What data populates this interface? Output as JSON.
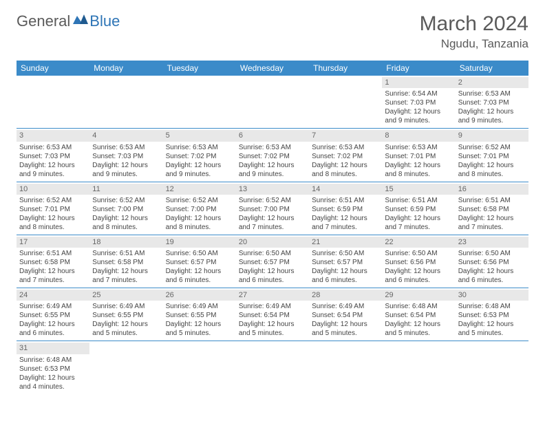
{
  "logo": {
    "text1": "General",
    "text2": "Blue"
  },
  "title": "March 2024",
  "location": "Ngudu, Tanzania",
  "colors": {
    "header_bg": "#3b8bc9",
    "header_text": "#ffffff",
    "daynum_bg": "#e8e8e8",
    "row_border": "#3b8bc9",
    "logo_blue": "#2e75b6",
    "text_gray": "#5a5a5a"
  },
  "weekdays": [
    "Sunday",
    "Monday",
    "Tuesday",
    "Wednesday",
    "Thursday",
    "Friday",
    "Saturday"
  ],
  "weeks": [
    [
      null,
      null,
      null,
      null,
      null,
      {
        "n": "1",
        "sr": "Sunrise: 6:54 AM",
        "ss": "Sunset: 7:03 PM",
        "d1": "Daylight: 12 hours",
        "d2": "and 9 minutes."
      },
      {
        "n": "2",
        "sr": "Sunrise: 6:53 AM",
        "ss": "Sunset: 7:03 PM",
        "d1": "Daylight: 12 hours",
        "d2": "and 9 minutes."
      }
    ],
    [
      {
        "n": "3",
        "sr": "Sunrise: 6:53 AM",
        "ss": "Sunset: 7:03 PM",
        "d1": "Daylight: 12 hours",
        "d2": "and 9 minutes."
      },
      {
        "n": "4",
        "sr": "Sunrise: 6:53 AM",
        "ss": "Sunset: 7:03 PM",
        "d1": "Daylight: 12 hours",
        "d2": "and 9 minutes."
      },
      {
        "n": "5",
        "sr": "Sunrise: 6:53 AM",
        "ss": "Sunset: 7:02 PM",
        "d1": "Daylight: 12 hours",
        "d2": "and 9 minutes."
      },
      {
        "n": "6",
        "sr": "Sunrise: 6:53 AM",
        "ss": "Sunset: 7:02 PM",
        "d1": "Daylight: 12 hours",
        "d2": "and 9 minutes."
      },
      {
        "n": "7",
        "sr": "Sunrise: 6:53 AM",
        "ss": "Sunset: 7:02 PM",
        "d1": "Daylight: 12 hours",
        "d2": "and 8 minutes."
      },
      {
        "n": "8",
        "sr": "Sunrise: 6:53 AM",
        "ss": "Sunset: 7:01 PM",
        "d1": "Daylight: 12 hours",
        "d2": "and 8 minutes."
      },
      {
        "n": "9",
        "sr": "Sunrise: 6:52 AM",
        "ss": "Sunset: 7:01 PM",
        "d1": "Daylight: 12 hours",
        "d2": "and 8 minutes."
      }
    ],
    [
      {
        "n": "10",
        "sr": "Sunrise: 6:52 AM",
        "ss": "Sunset: 7:01 PM",
        "d1": "Daylight: 12 hours",
        "d2": "and 8 minutes."
      },
      {
        "n": "11",
        "sr": "Sunrise: 6:52 AM",
        "ss": "Sunset: 7:00 PM",
        "d1": "Daylight: 12 hours",
        "d2": "and 8 minutes."
      },
      {
        "n": "12",
        "sr": "Sunrise: 6:52 AM",
        "ss": "Sunset: 7:00 PM",
        "d1": "Daylight: 12 hours",
        "d2": "and 8 minutes."
      },
      {
        "n": "13",
        "sr": "Sunrise: 6:52 AM",
        "ss": "Sunset: 7:00 PM",
        "d1": "Daylight: 12 hours",
        "d2": "and 7 minutes."
      },
      {
        "n": "14",
        "sr": "Sunrise: 6:51 AM",
        "ss": "Sunset: 6:59 PM",
        "d1": "Daylight: 12 hours",
        "d2": "and 7 minutes."
      },
      {
        "n": "15",
        "sr": "Sunrise: 6:51 AM",
        "ss": "Sunset: 6:59 PM",
        "d1": "Daylight: 12 hours",
        "d2": "and 7 minutes."
      },
      {
        "n": "16",
        "sr": "Sunrise: 6:51 AM",
        "ss": "Sunset: 6:58 PM",
        "d1": "Daylight: 12 hours",
        "d2": "and 7 minutes."
      }
    ],
    [
      {
        "n": "17",
        "sr": "Sunrise: 6:51 AM",
        "ss": "Sunset: 6:58 PM",
        "d1": "Daylight: 12 hours",
        "d2": "and 7 minutes."
      },
      {
        "n": "18",
        "sr": "Sunrise: 6:51 AM",
        "ss": "Sunset: 6:58 PM",
        "d1": "Daylight: 12 hours",
        "d2": "and 7 minutes."
      },
      {
        "n": "19",
        "sr": "Sunrise: 6:50 AM",
        "ss": "Sunset: 6:57 PM",
        "d1": "Daylight: 12 hours",
        "d2": "and 6 minutes."
      },
      {
        "n": "20",
        "sr": "Sunrise: 6:50 AM",
        "ss": "Sunset: 6:57 PM",
        "d1": "Daylight: 12 hours",
        "d2": "and 6 minutes."
      },
      {
        "n": "21",
        "sr": "Sunrise: 6:50 AM",
        "ss": "Sunset: 6:57 PM",
        "d1": "Daylight: 12 hours",
        "d2": "and 6 minutes."
      },
      {
        "n": "22",
        "sr": "Sunrise: 6:50 AM",
        "ss": "Sunset: 6:56 PM",
        "d1": "Daylight: 12 hours",
        "d2": "and 6 minutes."
      },
      {
        "n": "23",
        "sr": "Sunrise: 6:50 AM",
        "ss": "Sunset: 6:56 PM",
        "d1": "Daylight: 12 hours",
        "d2": "and 6 minutes."
      }
    ],
    [
      {
        "n": "24",
        "sr": "Sunrise: 6:49 AM",
        "ss": "Sunset: 6:55 PM",
        "d1": "Daylight: 12 hours",
        "d2": "and 6 minutes."
      },
      {
        "n": "25",
        "sr": "Sunrise: 6:49 AM",
        "ss": "Sunset: 6:55 PM",
        "d1": "Daylight: 12 hours",
        "d2": "and 5 minutes."
      },
      {
        "n": "26",
        "sr": "Sunrise: 6:49 AM",
        "ss": "Sunset: 6:55 PM",
        "d1": "Daylight: 12 hours",
        "d2": "and 5 minutes."
      },
      {
        "n": "27",
        "sr": "Sunrise: 6:49 AM",
        "ss": "Sunset: 6:54 PM",
        "d1": "Daylight: 12 hours",
        "d2": "and 5 minutes."
      },
      {
        "n": "28",
        "sr": "Sunrise: 6:49 AM",
        "ss": "Sunset: 6:54 PM",
        "d1": "Daylight: 12 hours",
        "d2": "and 5 minutes."
      },
      {
        "n": "29",
        "sr": "Sunrise: 6:48 AM",
        "ss": "Sunset: 6:54 PM",
        "d1": "Daylight: 12 hours",
        "d2": "and 5 minutes."
      },
      {
        "n": "30",
        "sr": "Sunrise: 6:48 AM",
        "ss": "Sunset: 6:53 PM",
        "d1": "Daylight: 12 hours",
        "d2": "and 5 minutes."
      }
    ],
    [
      {
        "n": "31",
        "sr": "Sunrise: 6:48 AM",
        "ss": "Sunset: 6:53 PM",
        "d1": "Daylight: 12 hours",
        "d2": "and 4 minutes."
      },
      null,
      null,
      null,
      null,
      null,
      null
    ]
  ]
}
